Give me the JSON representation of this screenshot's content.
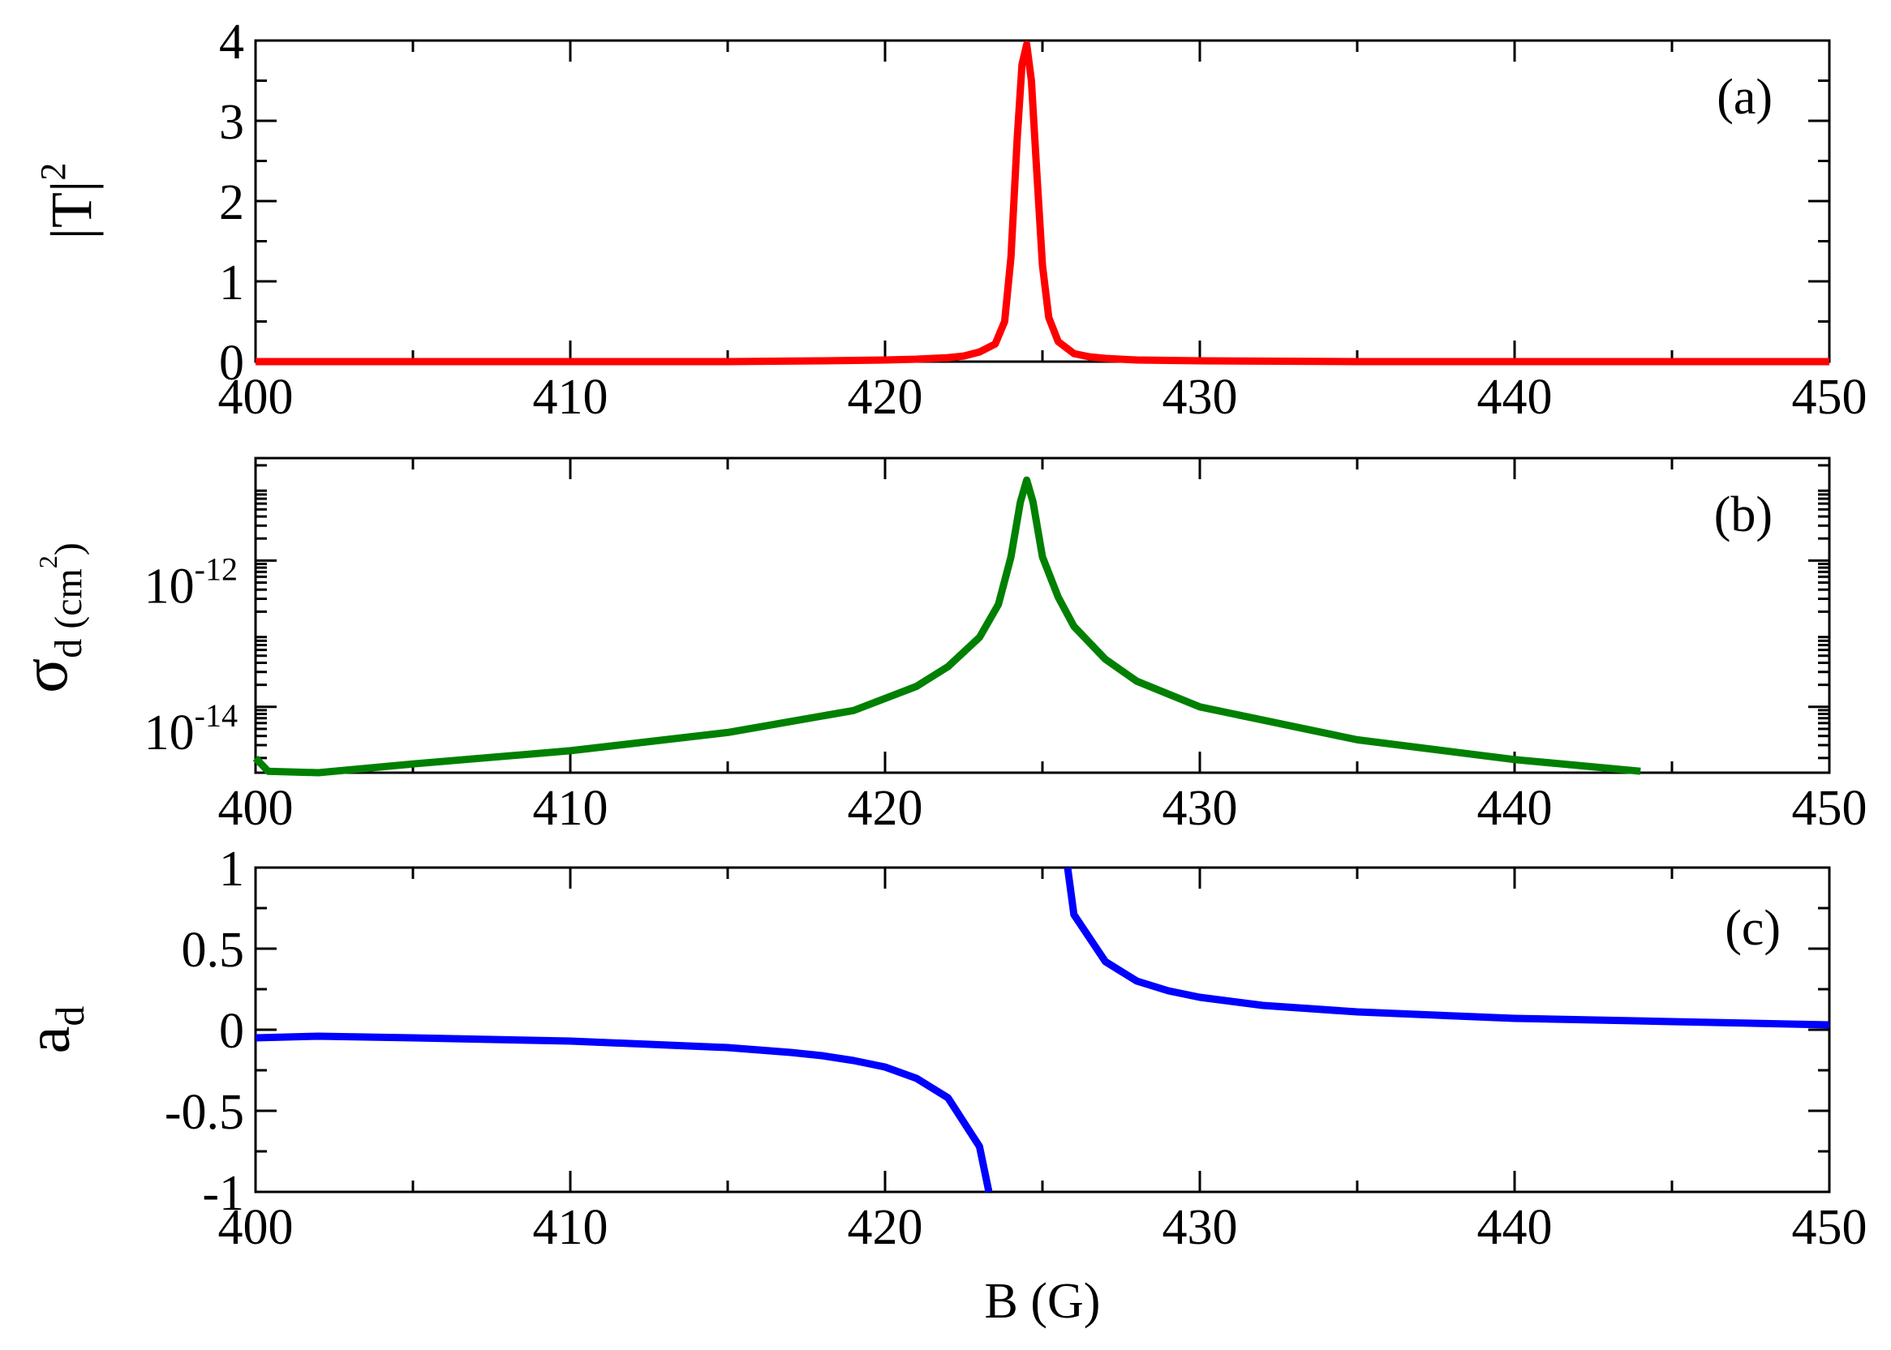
{
  "chart_data": [
    {
      "type": "line",
      "panel_label": "(a)",
      "ylabel": "|T|",
      "ylabel_sup": "2",
      "xlim": [
        400,
        450
      ],
      "ylim": [
        0,
        4
      ],
      "yscale": "linear",
      "x_ticks": [
        400,
        410,
        420,
        430,
        440,
        450
      ],
      "x_tick_labels": [
        "400",
        "410",
        "420",
        "430",
        "440",
        "450"
      ],
      "y_ticks": [
        0,
        1,
        2,
        3,
        4
      ],
      "y_tick_labels": [
        "0",
        "1",
        "2",
        "3",
        "4"
      ],
      "grid": false,
      "color": "#ff0000",
      "series": [
        {
          "x": [
            400,
            405,
            410,
            415,
            418,
            420,
            421,
            422,
            422.5,
            423,
            423.5,
            423.8,
            424.0,
            424.2,
            424.35,
            424.5,
            424.65,
            424.8,
            425.0,
            425.2,
            425.5,
            426,
            426.5,
            427,
            428,
            430,
            435,
            440,
            445,
            450
          ],
          "y": [
            0.0,
            0.0,
            0.0,
            0.0,
            0.01,
            0.02,
            0.03,
            0.05,
            0.07,
            0.12,
            0.22,
            0.5,
            1.3,
            2.8,
            3.7,
            3.95,
            3.5,
            2.5,
            1.2,
            0.55,
            0.25,
            0.1,
            0.06,
            0.04,
            0.02,
            0.01,
            0.0,
            0.0,
            0.0,
            0.0
          ]
        }
      ]
    },
    {
      "type": "line",
      "panel_label": "(b)",
      "ylabel": "σ",
      "ylabel_sub": "d (cm",
      "ylabel_sub_sup": "2",
      "ylabel_sub_end": ")",
      "xlim": [
        400,
        450
      ],
      "ylim_log10": [
        -14.9,
        -10.6
      ],
      "yscale": "log",
      "x_ticks": [
        400,
        410,
        420,
        430,
        440,
        450
      ],
      "x_tick_labels": [
        "400",
        "410",
        "420",
        "430",
        "440",
        "450"
      ],
      "y_ticks_log10": [
        -12,
        -14
      ],
      "y_tick_labels": [
        "10",
        "10"
      ],
      "y_tick_exponents": [
        "-12",
        "-14"
      ],
      "grid": false,
      "color": "#008000",
      "series": [
        {
          "x": [
            400,
            400.4,
            402,
            405,
            410,
            415,
            419,
            421,
            422,
            423,
            423.6,
            424.0,
            424.3,
            424.5,
            424.7,
            425.0,
            425.5,
            426,
            427,
            428,
            430,
            435,
            440,
            444
          ],
          "y_log10": [
            -14.7,
            -14.88,
            -14.9,
            -14.78,
            -14.6,
            -14.35,
            -14.05,
            -13.72,
            -13.45,
            -13.05,
            -12.6,
            -11.95,
            -11.2,
            -10.9,
            -11.2,
            -11.95,
            -12.5,
            -12.9,
            -13.35,
            -13.65,
            -14.0,
            -14.45,
            -14.72,
            -14.88
          ]
        }
      ]
    },
    {
      "type": "line",
      "panel_label": "(c)",
      "ylabel": "a",
      "ylabel_sub": "d",
      "xlabel": "B (G)",
      "xlim": [
        400,
        450
      ],
      "ylim": [
        -1,
        1
      ],
      "yscale": "linear",
      "x_ticks": [
        400,
        410,
        420,
        430,
        440,
        450
      ],
      "x_tick_labels": [
        "400",
        "410",
        "420",
        "430",
        "440",
        "450"
      ],
      "y_ticks": [
        -1,
        -0.5,
        0,
        0.5,
        1
      ],
      "y_tick_labels": [
        "-1",
        "-0.5",
        "0",
        "0.5",
        "1"
      ],
      "grid": false,
      "color": "#0000ff",
      "series": [
        {
          "name": "",
          "segments": [
            {
              "x": [
                400,
                402,
                405,
                410,
                415,
                417,
                418,
                419,
                420,
                421,
                422,
                423,
                423.3
              ],
              "y": [
                -0.05,
                -0.04,
                -0.05,
                -0.07,
                -0.11,
                -0.14,
                -0.16,
                -0.19,
                -0.23,
                -0.3,
                -0.42,
                -0.72,
                -1.0
              ]
            },
            {
              "x": [
                425.8,
                426,
                427,
                428,
                429,
                430,
                432,
                435,
                440,
                445,
                450
              ],
              "y": [
                1.0,
                0.71,
                0.42,
                0.3,
                0.24,
                0.2,
                0.15,
                0.11,
                0.07,
                0.05,
                0.03
              ]
            }
          ]
        }
      ]
    }
  ]
}
